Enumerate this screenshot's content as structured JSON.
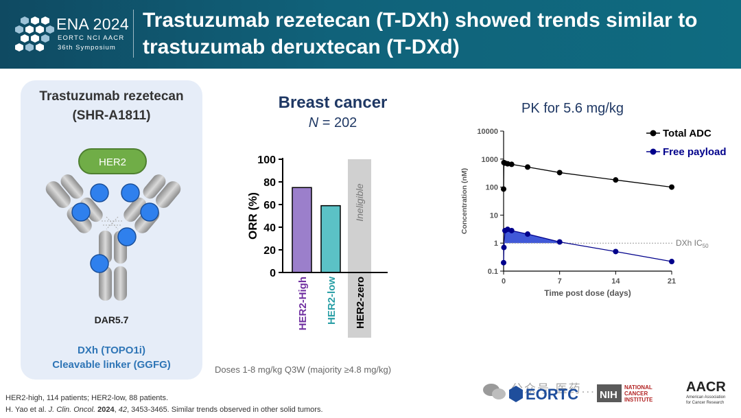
{
  "header": {
    "logo_title": "ENA 2024",
    "logo_subtitle": "EORTC NCI AACR",
    "logo_symposium": "36th Symposium",
    "title": "Trastuzumab rezetecan (T-DXh) showed trends similar to trastuzumab deruxtecan (T-DXd)"
  },
  "left_panel": {
    "drug_name": "Trastuzumab rezetecan",
    "drug_code": "(SHR-A1811)",
    "target_label": "HER2",
    "dar": "DAR5.7",
    "payload": "DXh (TOPO1i)",
    "linker": "Cleavable linker (GGFG)",
    "colors": {
      "panel": "#e6edf8",
      "target": "#70ad47",
      "payload_dots": "#2f80ed"
    }
  },
  "orr": {
    "title": "Breast cancer",
    "n_label": "N",
    "n_value": "= 202",
    "doses": "Doses 1-8 mg/kg Q3W (majority ≥4.8 mg/kg)"
  },
  "pk": {
    "title": "PK for 5.6 mg/kg",
    "ic50_label": "DXh IC",
    "ic50_sub": "50"
  },
  "footer": {
    "line1": "HER2-high, 114 patients; HER2-low, 88 patients.",
    "line2_authors": "H. Yao et al. ",
    "line2_journal": "J. Clin. Oncol.",
    "line2_year": "2024",
    "line2_volume": "42",
    "line2_rest": ", 3453-3465. Similar trends observed in other solid tumors."
  },
  "partners": {
    "eortc": "EORTC",
    "nih": "NIH",
    "nci": [
      "NATIONAL",
      "CANCER",
      "INSTITUTE"
    ],
    "aacr": "AACR",
    "aacr_sub": [
      "American Association",
      "for Cancer Research"
    ],
    "watermark": "公众号·医药..."
  },
  "chart_data": [
    {
      "type": "bar",
      "title": "Breast cancer",
      "categories": [
        "HER2-High",
        "HER2-low",
        "HER2-zero"
      ],
      "values": [
        75,
        59,
        null
      ],
      "annotations": {
        "HER2-zero": "Ineligible"
      },
      "ylabel": "ORR (%)",
      "ylim": [
        0,
        100
      ],
      "yticks": [
        0,
        20,
        40,
        60,
        80,
        100
      ],
      "colors": [
        "#9b7fcb",
        "#5bc2c6",
        "#d0d0d0"
      ],
      "label_colors": [
        "#7030a0",
        "#2a9fa6",
        "#000000"
      ]
    },
    {
      "type": "line",
      "title": "PK for 5.6 mg/kg",
      "xlabel": "Time post dose (days)",
      "ylabel": "Concentration (nM)",
      "scale_y": "log",
      "ylim": [
        0.1,
        10000
      ],
      "yticks": [
        0.1,
        1,
        10,
        100,
        1000,
        10000
      ],
      "ytick_labels": [
        "0.1",
        "1",
        "10",
        "100",
        "1000",
        "10000"
      ],
      "xlim": [
        0,
        21
      ],
      "xticks": [
        0,
        7,
        14,
        21
      ],
      "legend_position": "top-right",
      "reference_line": {
        "y": 1,
        "label": "DXh IC50"
      },
      "series": [
        {
          "name": "Total ADC",
          "color": "#000000",
          "x": [
            0,
            0.04,
            0.17,
            0.5,
            1,
            3,
            7,
            14,
            21
          ],
          "y": [
            85,
            750,
            720,
            680,
            650,
            520,
            330,
            180,
            100
          ]
        },
        {
          "name": "Free payload",
          "color": "#00008b",
          "x": [
            0,
            0.04,
            0.17,
            0.5,
            1,
            3,
            7,
            14,
            21
          ],
          "y": [
            0.2,
            0.7,
            2.8,
            3.1,
            2.8,
            2.1,
            1.1,
            0.5,
            0.22
          ]
        }
      ]
    }
  ]
}
